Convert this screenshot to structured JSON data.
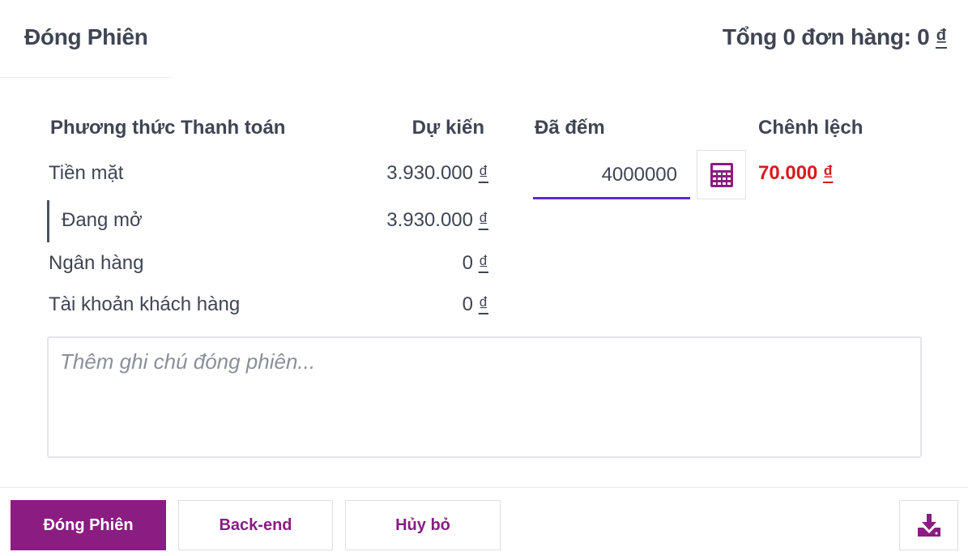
{
  "header": {
    "title": "Đóng Phiên",
    "total_prefix": "Tổng 0 đơn hàng: 0",
    "currency": "₫"
  },
  "table": {
    "headers": {
      "method": "Phương thức Thanh toán",
      "expected": "Dự kiến",
      "counted": "Đã đếm",
      "difference": "Chênh lệch"
    },
    "rows": [
      {
        "label": "Tiền mặt",
        "expected": "3.930.000",
        "currency": "₫"
      },
      {
        "label": "Đang mở",
        "expected": "3.930.000",
        "currency": "₫"
      },
      {
        "label": "Ngân hàng",
        "expected": "0",
        "currency": "₫"
      },
      {
        "label": "Tài khoản khách hàng",
        "expected": "0",
        "currency": "₫"
      }
    ],
    "cash_counted_value": "4000000",
    "cash_difference": "70.000",
    "difference_currency": "₫"
  },
  "icons": {
    "calculator": "calculator-icon",
    "download": "download-icon"
  },
  "colors": {
    "accent": "#8a1c82",
    "input_focus": "#5b2bd6",
    "difference_red": "#d81b1b"
  },
  "notes": {
    "placeholder": "Thêm ghi chú đóng phiên..."
  },
  "footer": {
    "close_label": "Đóng Phiên",
    "backend_label": "Back-end",
    "cancel_label": "Hủy bỏ"
  }
}
